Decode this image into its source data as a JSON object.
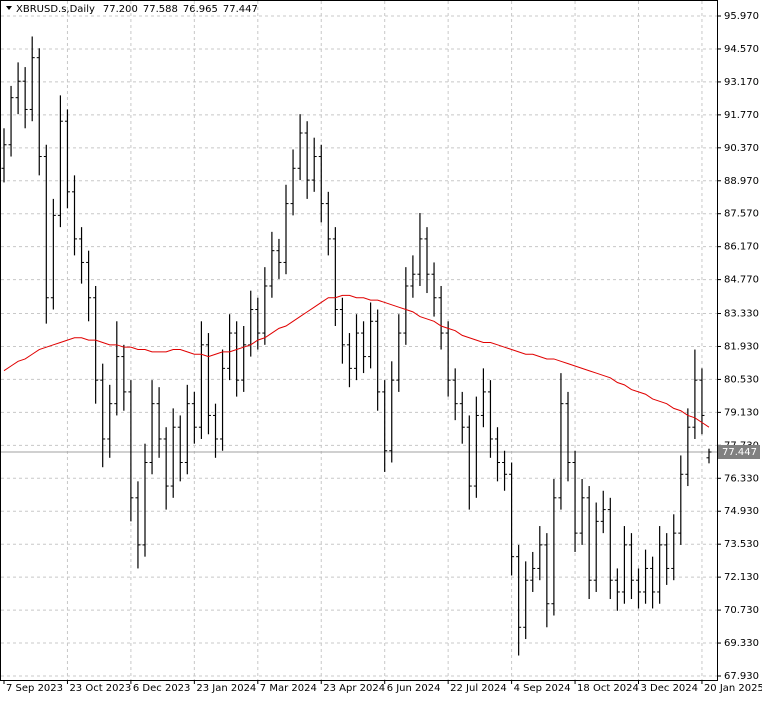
{
  "chart_data": {
    "type": "ohlc",
    "title": "XBRUSD.s,Daily",
    "ohlc_labels": [
      "77.200",
      "77.588",
      "76.965",
      "77.447"
    ],
    "color": "#000000",
    "ylim": [
      67.76,
      96.65
    ],
    "yticks": [
      {
        "value": 95.97,
        "label": "95.970"
      },
      {
        "value": 94.57,
        "label": "94.570"
      },
      {
        "value": 93.17,
        "label": "93.170"
      },
      {
        "value": 91.77,
        "label": "91.770"
      },
      {
        "value": 90.37,
        "label": "90.370"
      },
      {
        "value": 88.97,
        "label": "88.970"
      },
      {
        "value": 87.57,
        "label": "87.570"
      },
      {
        "value": 86.17,
        "label": "86.170"
      },
      {
        "value": 84.77,
        "label": "84.770"
      },
      {
        "value": 83.33,
        "label": "83.330"
      },
      {
        "value": 81.93,
        "label": "81.930"
      },
      {
        "value": 80.53,
        "label": "80.530"
      },
      {
        "value": 79.13,
        "label": "79.130"
      },
      {
        "value": 77.73,
        "label": "77.730"
      },
      {
        "value": 76.33,
        "label": "76.330"
      },
      {
        "value": 74.93,
        "label": "74.930"
      },
      {
        "value": 73.53,
        "label": "73.530"
      },
      {
        "value": 72.13,
        "label": "72.130"
      },
      {
        "value": 70.73,
        "label": "70.730"
      },
      {
        "value": 69.33,
        "label": "69.330"
      },
      {
        "value": 67.93,
        "label": "67.930"
      }
    ],
    "grid": true,
    "last_price": {
      "value": 77.447,
      "label": "77.447"
    },
    "categories": [
      "7 Sep 2023",
      null,
      null,
      null,
      null,
      null,
      null,
      null,
      null,
      "23 Oct 2023",
      null,
      null,
      null,
      null,
      null,
      null,
      null,
      null,
      "6 Dec 2023",
      null,
      null,
      null,
      null,
      null,
      null,
      null,
      null,
      "23 Jan 2024",
      null,
      null,
      null,
      null,
      null,
      null,
      null,
      null,
      "7 Mar 2024",
      null,
      null,
      null,
      null,
      null,
      null,
      null,
      null,
      "23 Apr 2024",
      null,
      null,
      null,
      null,
      null,
      null,
      null,
      null,
      "6 Jun 2024",
      null,
      null,
      null,
      null,
      null,
      null,
      null,
      null,
      "22 Jul 2024",
      null,
      null,
      null,
      null,
      null,
      null,
      null,
      null,
      "4 Sep 2024",
      null,
      null,
      null,
      null,
      null,
      null,
      null,
      null,
      "18 Oct 2024",
      null,
      null,
      null,
      null,
      null,
      null,
      null,
      null,
      "3 Dec 2024",
      null,
      null,
      null,
      null,
      null,
      null,
      null,
      null,
      "20 Jan 2025",
      null
    ],
    "ohlc": [
      [
        89.5,
        91.2,
        88.9,
        90.5
      ],
      [
        90.5,
        93.0,
        90.0,
        92.5
      ],
      [
        92.5,
        94.0,
        91.8,
        93.2
      ],
      [
        93.2,
        93.8,
        91.2,
        92.0
      ],
      [
        92.0,
        95.1,
        91.5,
        94.2
      ],
      [
        94.2,
        94.6,
        89.2,
        90.0
      ],
      [
        90.0,
        90.5,
        82.9,
        84.0
      ],
      [
        84.0,
        88.2,
        83.5,
        87.5
      ],
      [
        87.5,
        92.6,
        87.0,
        91.5
      ],
      [
        91.5,
        92.0,
        87.8,
        88.5
      ],
      [
        88.5,
        89.2,
        85.8,
        86.5
      ],
      [
        86.5,
        87.0,
        84.6,
        85.5
      ],
      [
        85.5,
        86.0,
        83.0,
        84.0
      ],
      [
        84.0,
        84.5,
        79.5,
        80.5
      ],
      [
        80.5,
        81.2,
        76.8,
        78.0
      ],
      [
        78.0,
        80.3,
        77.2,
        79.5
      ],
      [
        79.5,
        83.0,
        79.0,
        81.5
      ],
      [
        81.5,
        82.0,
        79.2,
        80.0
      ],
      [
        80.0,
        80.5,
        74.5,
        75.5
      ],
      [
        75.5,
        76.2,
        72.5,
        73.5
      ],
      [
        73.5,
        77.8,
        73.0,
        77.0
      ],
      [
        77.0,
        80.5,
        76.5,
        79.5
      ],
      [
        79.5,
        80.2,
        77.2,
        78.0
      ],
      [
        78.0,
        78.5,
        75.0,
        76.0
      ],
      [
        76.0,
        79.3,
        75.5,
        78.5
      ],
      [
        78.5,
        79.0,
        76.2,
        77.0
      ],
      [
        77.0,
        80.3,
        76.5,
        79.5
      ],
      [
        79.5,
        80.0,
        77.8,
        78.5
      ],
      [
        78.5,
        83.0,
        78.0,
        82.0
      ],
      [
        82.0,
        82.5,
        78.2,
        79.0
      ],
      [
        79.0,
        79.5,
        77.2,
        78.0
      ],
      [
        78.0,
        81.8,
        77.5,
        81.0
      ],
      [
        81.0,
        83.3,
        80.5,
        82.5
      ],
      [
        82.5,
        83.0,
        79.8,
        80.5
      ],
      [
        80.5,
        82.8,
        80.0,
        82.0
      ],
      [
        82.0,
        84.3,
        81.5,
        83.5
      ],
      [
        83.5,
        84.0,
        81.8,
        82.5
      ],
      [
        82.5,
        85.3,
        82.0,
        84.5
      ],
      [
        84.5,
        86.8,
        84.0,
        86.0
      ],
      [
        86.0,
        86.5,
        84.8,
        85.5
      ],
      [
        85.5,
        88.8,
        85.0,
        88.0
      ],
      [
        88.0,
        90.3,
        87.5,
        89.5
      ],
      [
        89.5,
        91.8,
        89.0,
        91.0
      ],
      [
        91.0,
        91.5,
        88.2,
        89.0
      ],
      [
        89.0,
        90.8,
        88.5,
        90.0
      ],
      [
        90.0,
        90.5,
        87.2,
        88.0
      ],
      [
        88.0,
        88.5,
        85.8,
        86.5
      ],
      [
        86.5,
        87.0,
        82.8,
        83.5
      ],
      [
        83.5,
        84.0,
        81.2,
        82.0
      ],
      [
        82.0,
        82.5,
        80.2,
        81.0
      ],
      [
        81.0,
        83.3,
        80.5,
        82.5
      ],
      [
        82.5,
        83.0,
        80.8,
        81.5
      ],
      [
        81.5,
        83.8,
        81.0,
        83.0
      ],
      [
        83.0,
        83.5,
        79.2,
        80.0
      ],
      [
        80.0,
        80.5,
        76.6,
        77.5
      ],
      [
        77.5,
        81.3,
        77.0,
        80.5
      ],
      [
        80.5,
        83.3,
        80.0,
        82.5
      ],
      [
        82.5,
        85.3,
        82.0,
        84.5
      ],
      [
        84.5,
        85.8,
        84.0,
        85.0
      ],
      [
        85.0,
        87.6,
        84.5,
        86.5
      ],
      [
        86.5,
        87.0,
        84.2,
        85.0
      ],
      [
        85.0,
        85.5,
        83.2,
        84.0
      ],
      [
        84.0,
        84.5,
        81.8,
        82.5
      ],
      [
        82.5,
        83.0,
        79.8,
        80.5
      ],
      [
        80.5,
        81.0,
        78.8,
        79.5
      ],
      [
        79.5,
        80.0,
        77.8,
        78.5
      ],
      [
        78.5,
        79.0,
        75.0,
        76.0
      ],
      [
        76.0,
        79.8,
        75.5,
        79.0
      ],
      [
        79.0,
        81.0,
        78.5,
        80.0
      ],
      [
        80.0,
        80.5,
        77.2,
        78.0
      ],
      [
        78.0,
        78.5,
        76.2,
        77.0
      ],
      [
        77.0,
        77.5,
        75.8,
        76.5
      ],
      [
        76.5,
        77.0,
        72.2,
        73.0
      ],
      [
        73.0,
        73.5,
        68.8,
        70.0
      ],
      [
        70.0,
        72.8,
        69.5,
        72.0
      ],
      [
        72.0,
        73.2,
        71.5,
        72.5
      ],
      [
        72.5,
        74.3,
        72.0,
        73.5
      ],
      [
        73.5,
        74.0,
        70.0,
        71.0
      ],
      [
        71.0,
        76.3,
        70.5,
        75.5
      ],
      [
        75.5,
        80.8,
        75.0,
        79.5
      ],
      [
        79.5,
        80.0,
        76.2,
        77.0
      ],
      [
        77.0,
        77.5,
        73.2,
        74.0
      ],
      [
        74.0,
        76.3,
        73.5,
        75.5
      ],
      [
        75.5,
        76.0,
        71.2,
        72.0
      ],
      [
        72.0,
        75.3,
        71.5,
        74.5
      ],
      [
        74.5,
        75.8,
        74.0,
        75.0
      ],
      [
        75.0,
        75.5,
        71.2,
        72.0
      ],
      [
        72.0,
        72.5,
        70.7,
        71.5
      ],
      [
        71.5,
        74.3,
        71.0,
        73.5
      ],
      [
        73.5,
        74.0,
        71.2,
        72.0
      ],
      [
        72.0,
        72.5,
        70.8,
        71.5
      ],
      [
        71.5,
        73.3,
        71.0,
        72.5
      ],
      [
        72.5,
        73.0,
        70.8,
        71.5
      ],
      [
        71.5,
        74.3,
        71.0,
        73.5
      ],
      [
        73.5,
        74.0,
        71.8,
        72.5
      ],
      [
        72.5,
        74.8,
        72.0,
        74.0
      ],
      [
        74.0,
        77.3,
        73.5,
        76.5
      ],
      [
        76.5,
        79.3,
        76.0,
        78.5
      ],
      [
        78.5,
        81.8,
        78.0,
        80.5
      ],
      [
        80.5,
        81.0,
        78.2,
        79.0
      ],
      [
        77.2,
        77.588,
        76.965,
        77.447
      ]
    ],
    "ma": {
      "color": "#e00000",
      "values": [
        80.9,
        81.1,
        81.3,
        81.4,
        81.6,
        81.8,
        81.9,
        82.0,
        82.1,
        82.2,
        82.3,
        82.3,
        82.2,
        82.2,
        82.1,
        82.0,
        82.0,
        81.9,
        81.9,
        81.8,
        81.8,
        81.7,
        81.7,
        81.7,
        81.8,
        81.8,
        81.7,
        81.6,
        81.6,
        81.5,
        81.6,
        81.7,
        81.7,
        81.8,
        81.9,
        82.0,
        82.2,
        82.3,
        82.5,
        82.7,
        82.8,
        83.0,
        83.2,
        83.4,
        83.6,
        83.8,
        84.0,
        84.0,
        84.1,
        84.1,
        84.0,
        84.0,
        83.9,
        83.9,
        83.8,
        83.7,
        83.6,
        83.5,
        83.4,
        83.2,
        83.1,
        83.0,
        82.8,
        82.7,
        82.6,
        82.4,
        82.3,
        82.2,
        82.1,
        82.1,
        82.0,
        81.9,
        81.8,
        81.7,
        81.6,
        81.6,
        81.5,
        81.4,
        81.4,
        81.3,
        81.2,
        81.1,
        81.0,
        80.9,
        80.8,
        80.7,
        80.6,
        80.4,
        80.3,
        80.1,
        80.0,
        79.9,
        79.7,
        79.6,
        79.5,
        79.3,
        79.2,
        79.0,
        78.9,
        78.7,
        78.5
      ]
    }
  }
}
